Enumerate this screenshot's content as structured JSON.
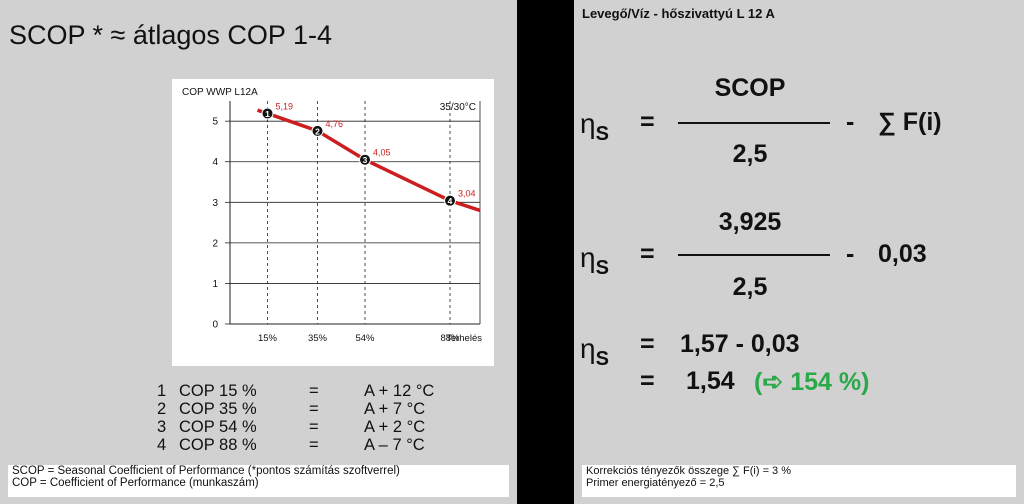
{
  "left": {
    "title": "SCOP * ≈ átlagos COP 1-4",
    "legend_rows": [
      {
        "num": "1",
        "label": "COP 15 %",
        "eq": "=",
        "value": "A + 12 °C"
      },
      {
        "num": "2",
        "label": "COP 35 %",
        "eq": "=",
        "value": "A + 7 °C"
      },
      {
        "num": "3",
        "label": "COP 54 %",
        "eq": "=",
        "value": "A + 2 °C"
      },
      {
        "num": "4",
        "label": "COP 88 %",
        "eq": "=",
        "value": "A –  7 °C"
      }
    ],
    "footnotes": [
      "SCOP  = Seasonal Coefficient of Performance (*pontos számítás szoftverrel)",
      "COP     = Coefficient of Performance (munkaszám)"
    ]
  },
  "chart_data": {
    "type": "line",
    "title": "COP  WWP L12A",
    "annotation": "35/30°C",
    "xlabel": "Terhelés",
    "x": [
      15,
      35,
      54,
      88
    ],
    "x_tick_labels": [
      "15%",
      "35%",
      "54%",
      "88%"
    ],
    "series": [
      {
        "values": [
          5.19,
          4.76,
          4.05,
          3.04
        ],
        "point_labels": [
          "5,19",
          "4,76",
          "4,05",
          "3,04"
        ],
        "markers": [
          "1",
          "2",
          "3",
          "4"
        ]
      }
    ],
    "line_extends_to": [
      100,
      2.8
    ],
    "yticks": [
      0,
      1,
      2,
      3,
      4,
      5
    ],
    "ylim": [
      0,
      5.3
    ],
    "grid": true,
    "line_color": "#cc1e1e"
  },
  "right": {
    "title": "Levegő/Víz - hőszivattyú L 12 A",
    "eta": "η",
    "eta_sub": "S",
    "eq": "=",
    "minus": "-",
    "row1": {
      "num": "SCOP",
      "den": "2,5",
      "tail": "∑ F(i)"
    },
    "row2": {
      "num": "3,925",
      "den": "2,5",
      "tail": "0,03"
    },
    "row3": {
      "expr": "1,57 - 0,03"
    },
    "row4": {
      "value": "1,54",
      "pct": "(➪ 154 %)"
    },
    "footnotes": [
      "Korrekciós tényezők összege ∑ F(i) = 3 %",
      "Primer energiatényező = 2,5"
    ]
  }
}
